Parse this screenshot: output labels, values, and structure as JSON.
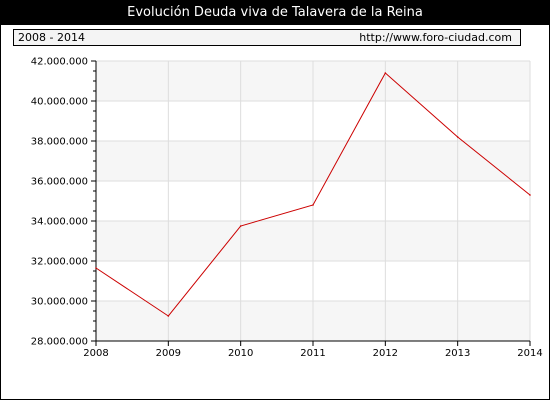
{
  "header": {
    "title": "Evolución Deuda viva de Talavera de la Reina",
    "period": "2008 - 2014",
    "url": "http://www.foro-ciudad.com"
  },
  "colors": {
    "line": "#cc0000",
    "plot_band_light": "#f6f6f6",
    "plot_band_white": "#ffffff",
    "grid": "#dddddd",
    "axis": "#000000"
  },
  "chart_data": {
    "type": "line",
    "title": "Evolución Deuda viva de Talavera de la Reina",
    "xlabel": "",
    "ylabel": "",
    "x": [
      2008,
      2009,
      2010,
      2011,
      2012,
      2013,
      2014
    ],
    "series": [
      {
        "values": [
          31650000,
          29250000,
          33750000,
          34800000,
          41400000,
          38200000,
          35300000
        ]
      }
    ],
    "ylim": [
      28000000,
      42000000
    ],
    "yticks": [
      28000000,
      30000000,
      32000000,
      34000000,
      36000000,
      38000000,
      40000000,
      42000000
    ],
    "ytick_labels": [
      "28.000.000",
      "30.000.000",
      "32.000.000",
      "34.000.000",
      "36.000.000",
      "38.000.000",
      "40.000.000",
      "42.000.000"
    ],
    "xtick_labels": [
      "2008",
      "2009",
      "2010",
      "2011",
      "2012",
      "2013",
      "2014"
    ],
    "grid": true,
    "legend": "none"
  }
}
